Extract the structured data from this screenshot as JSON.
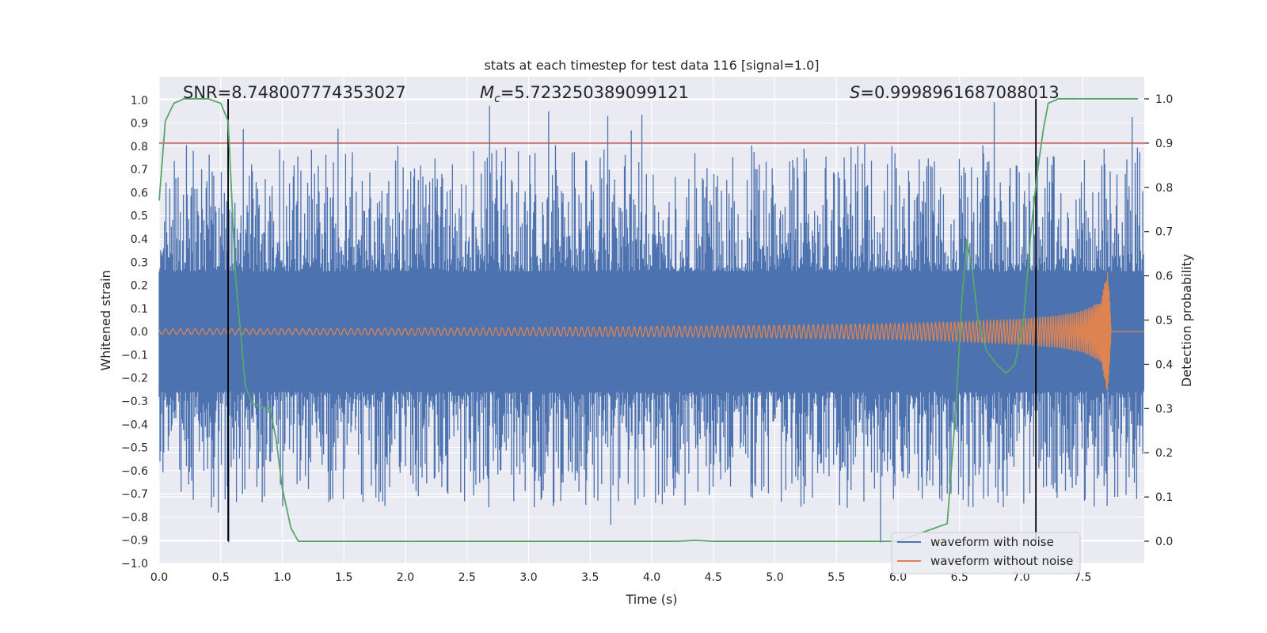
{
  "chart_data": {
    "type": "line",
    "title": "stats at each timestep for test data 116 [signal=1.0]",
    "xlabel": "Time (s)",
    "ylabel": "Whitened strain",
    "y2label": "Detection probability",
    "xlim": [
      0.0,
      8.0
    ],
    "ylim": [
      -1.0,
      1.1
    ],
    "y2lim": [
      -0.05,
      1.05
    ],
    "xticks": [
      "0.0",
      "0.5",
      "1.0",
      "1.5",
      "2.0",
      "2.5",
      "3.0",
      "3.5",
      "4.0",
      "4.5",
      "5.0",
      "5.5",
      "6.0",
      "6.5",
      "7.0",
      "7.5"
    ],
    "xtick_values": [
      0,
      0.5,
      1,
      1.5,
      2,
      2.5,
      3,
      3.5,
      4,
      4.5,
      5,
      5.5,
      6,
      6.5,
      7,
      7.5
    ],
    "yticks": [
      "−1.0",
      "−0.9",
      "−0.8",
      "−0.7",
      "−0.6",
      "−0.5",
      "−0.4",
      "−0.3",
      "−0.2",
      "−0.1",
      "0.0",
      "0.1",
      "0.2",
      "0.3",
      "0.4",
      "0.5",
      "0.6",
      "0.7",
      "0.8",
      "0.9",
      "1.0"
    ],
    "ytick_values": [
      -1,
      -0.9,
      -0.8,
      -0.7,
      -0.6,
      -0.5,
      -0.4,
      -0.3,
      -0.2,
      -0.1,
      0,
      0.1,
      0.2,
      0.3,
      0.4,
      0.5,
      0.6,
      0.7,
      0.8,
      0.9,
      1.0
    ],
    "y2ticks": [
      "0.0",
      "0.1",
      "0.2",
      "0.3",
      "0.4",
      "0.5",
      "0.6",
      "0.7",
      "0.8",
      "0.9",
      "1.0"
    ],
    "y2tick_values": [
      0,
      0.1,
      0.2,
      0.3,
      0.4,
      0.5,
      0.6,
      0.7,
      0.8,
      0.9,
      1.0
    ],
    "annotations": {
      "snr": "SNR=8.748007774353027",
      "mc_symbol": "M",
      "mc_sub": "c",
      "mc_value": "=5.723250389099121",
      "s_symbol": "S",
      "s_value": "=0.9998961687088013"
    },
    "threshold_y2": 0.9,
    "vertical_lines_x": [
      0.56,
      7.12
    ],
    "legend_position": "lower right",
    "grid": true,
    "series": [
      {
        "name": "waveform with noise",
        "color": "#4c72b0",
        "axis": "left",
        "description_stats": {
          "x_range": [
            0.0,
            8.0
          ],
          "approx_min": -0.91,
          "approx_max": 1.0
        }
      },
      {
        "name": "waveform without noise",
        "color": "#dd8452",
        "axis": "left",
        "x": [
          0.0,
          1.0,
          2.0,
          3.0,
          4.0,
          5.0,
          6.0,
          6.5,
          7.0,
          7.3,
          7.5,
          7.65,
          7.7,
          7.72,
          7.73,
          8.0
        ],
        "envelope": [
          0.012,
          0.013,
          0.015,
          0.018,
          0.022,
          0.027,
          0.035,
          0.042,
          0.055,
          0.07,
          0.09,
          0.13,
          0.27,
          0.15,
          0.0,
          0.0
        ]
      },
      {
        "name": "",
        "color": "#55a868",
        "axis": "right",
        "x": [
          0.0,
          0.05,
          0.12,
          0.2,
          0.3,
          0.4,
          0.5,
          0.56,
          0.62,
          0.7,
          0.76,
          0.9,
          0.95,
          1.0,
          1.07,
          1.13,
          1.2,
          2.0,
          3.0,
          4.0,
          4.2,
          4.35,
          4.5,
          5.0,
          6.0,
          6.4,
          6.47,
          6.52,
          6.56,
          6.6,
          6.65,
          6.72,
          6.8,
          6.88,
          6.95,
          7.02,
          7.08,
          7.13,
          7.18,
          7.22,
          7.3,
          7.5,
          7.8,
          7.95
        ],
        "values": [
          0.77,
          0.95,
          0.99,
          1.0,
          1.0,
          1.0,
          0.99,
          0.95,
          0.6,
          0.35,
          0.31,
          0.3,
          0.23,
          0.12,
          0.03,
          0.0,
          0.0,
          0.0,
          0.0,
          0.0,
          0.0,
          0.002,
          0.0,
          0.0,
          0.0,
          0.04,
          0.3,
          0.55,
          0.68,
          0.62,
          0.5,
          0.43,
          0.4,
          0.38,
          0.4,
          0.5,
          0.7,
          0.83,
          0.93,
          0.99,
          1.0,
          1.0,
          1.0,
          1.0
        ]
      }
    ]
  },
  "legend": {
    "items": [
      {
        "label": "waveform with noise",
        "color": "#4c72b0"
      },
      {
        "label": "waveform without noise",
        "color": "#dd8452"
      }
    ]
  },
  "colors": {
    "axes_bg": "#eaeaf2",
    "grid": "#ffffff",
    "threshold": "#c44e52",
    "vline": "#000000"
  }
}
